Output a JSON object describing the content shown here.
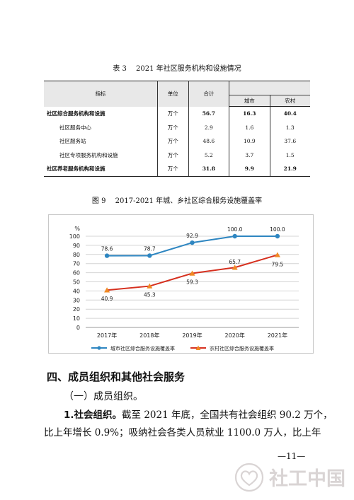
{
  "table": {
    "title": "表 3　 2021 年社区服务机构和设施情况",
    "headers": {
      "indicator": "指标",
      "unit": "单位",
      "total": "合计",
      "urban": "城市",
      "rural": "农村"
    },
    "rows": [
      {
        "name": "社区综合服务机构和设施",
        "unit": "万个",
        "total": "56.7",
        "urban": "16.3",
        "rural": "40.4"
      },
      {
        "name": "社区服务中心",
        "unit": "万个",
        "total": "2.9",
        "urban": "1.6",
        "rural": "1.3"
      },
      {
        "name": "社区服务站",
        "unit": "万个",
        "total": "48.6",
        "urban": "10.9",
        "rural": "37.6"
      },
      {
        "name": "社区专项服务机构和设施",
        "unit": "万个",
        "total": "5.2",
        "urban": "3.7",
        "rural": "1.5"
      },
      {
        "name": "社区养老服务机构和设施",
        "unit": "万个",
        "total": "31.8",
        "urban": "9.9",
        "rural": "21.9"
      }
    ]
  },
  "chart_data": {
    "type": "line",
    "title": "图 9　 2017-2021 年城、乡社区综合服务设施覆盖率",
    "ylabel": "%",
    "ylim": [
      0,
      100
    ],
    "yticks": [
      0,
      10,
      20,
      30,
      40,
      50,
      60,
      70,
      80,
      90,
      100
    ],
    "categories": [
      "2017年",
      "2018年",
      "2019年",
      "2020年",
      "2021年"
    ],
    "series": [
      {
        "name": "城市社区综合服务设施覆盖率",
        "values": [
          78.6,
          78.7,
          92.9,
          100.0,
          100.0
        ],
        "labels": [
          "78.6",
          "78.7",
          "92.9",
          "100.0",
          "100.0"
        ],
        "color": "#2e86c1",
        "marker": "circle"
      },
      {
        "name": "农村社区综合服务设施覆盖率",
        "values": [
          40.9,
          45.3,
          59.3,
          65.7,
          79.5
        ],
        "labels": [
          "40.9",
          "45.3",
          "59.3",
          "65.7",
          "79.5"
        ],
        "color": "#d6301f",
        "marker": "triangle",
        "marker_color": "#f08a24"
      }
    ],
    "grid": true,
    "legend": "bottom"
  },
  "text": {
    "section_heading": "四、成员组织和其他社会服务",
    "sub_heading": "（一）成员组织。",
    "para1_lead": "1.社会组织。",
    "para1_rest": "截至 2021 年底，全国共有社会组织 90.2 万个，",
    "para2": "比上年增长 0.9%；吸纳社会各类人员就业 1100.0 万人，比上年",
    "page_number": "—11—"
  },
  "watermark": {
    "text": "社工中国",
    "color": "#d9d4d4"
  }
}
